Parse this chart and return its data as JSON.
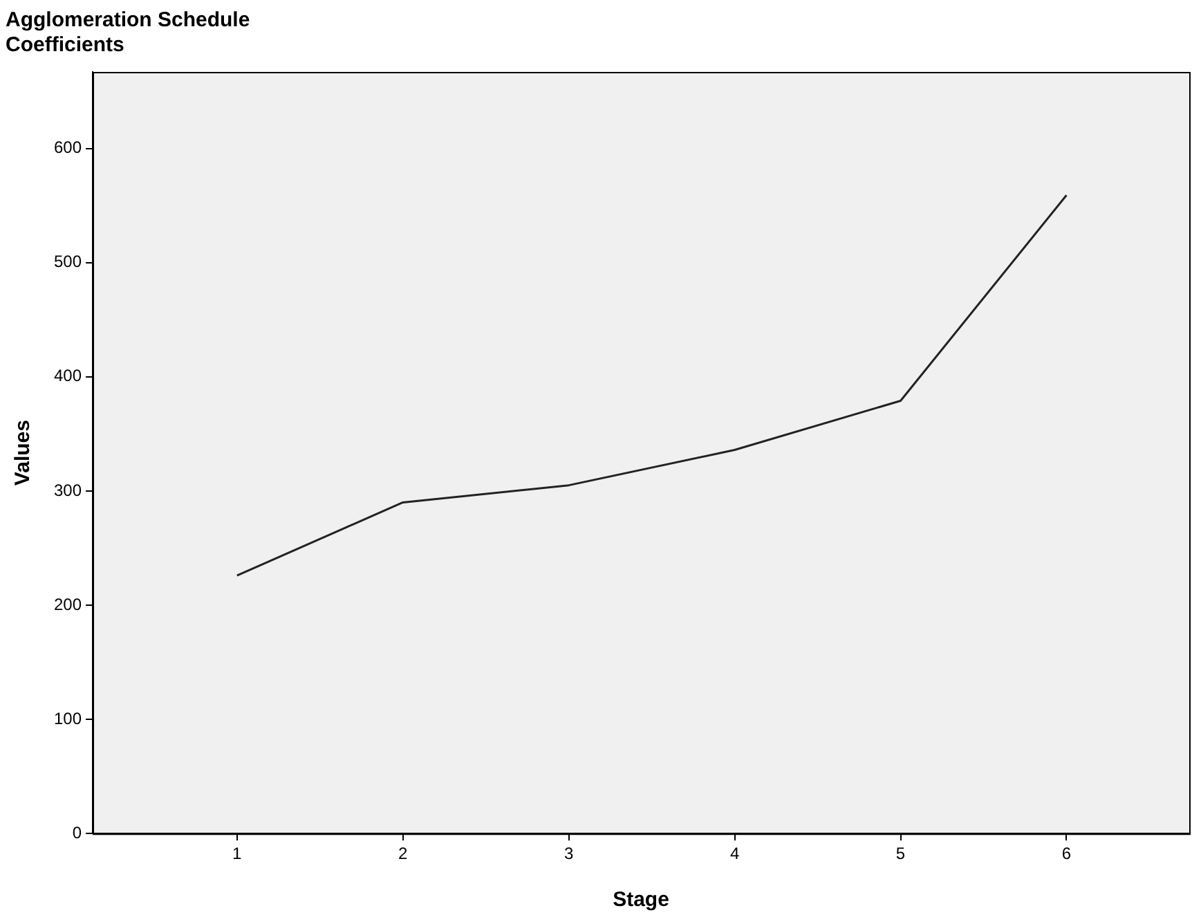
{
  "chart_data": {
    "type": "line",
    "title": "Agglomeration Schedule",
    "subtitle": "Coefficients",
    "xlabel": "Stage",
    "ylabel": "Values",
    "x": [
      1,
      2,
      3,
      4,
      5,
      6
    ],
    "series": [
      {
        "color": "#222222",
        "values": [
          226,
          290,
          305,
          336,
          379,
          559
        ]
      }
    ],
    "xlim": [
      0.13,
      6.74
    ],
    "xticks": [
      1,
      2,
      3,
      4,
      5,
      6
    ],
    "ylim": [
      0,
      667
    ],
    "yticks": [
      0,
      100,
      200,
      300,
      400,
      500,
      600
    ],
    "grid": false,
    "legend": false,
    "marker": "none",
    "line_style": "solid"
  }
}
